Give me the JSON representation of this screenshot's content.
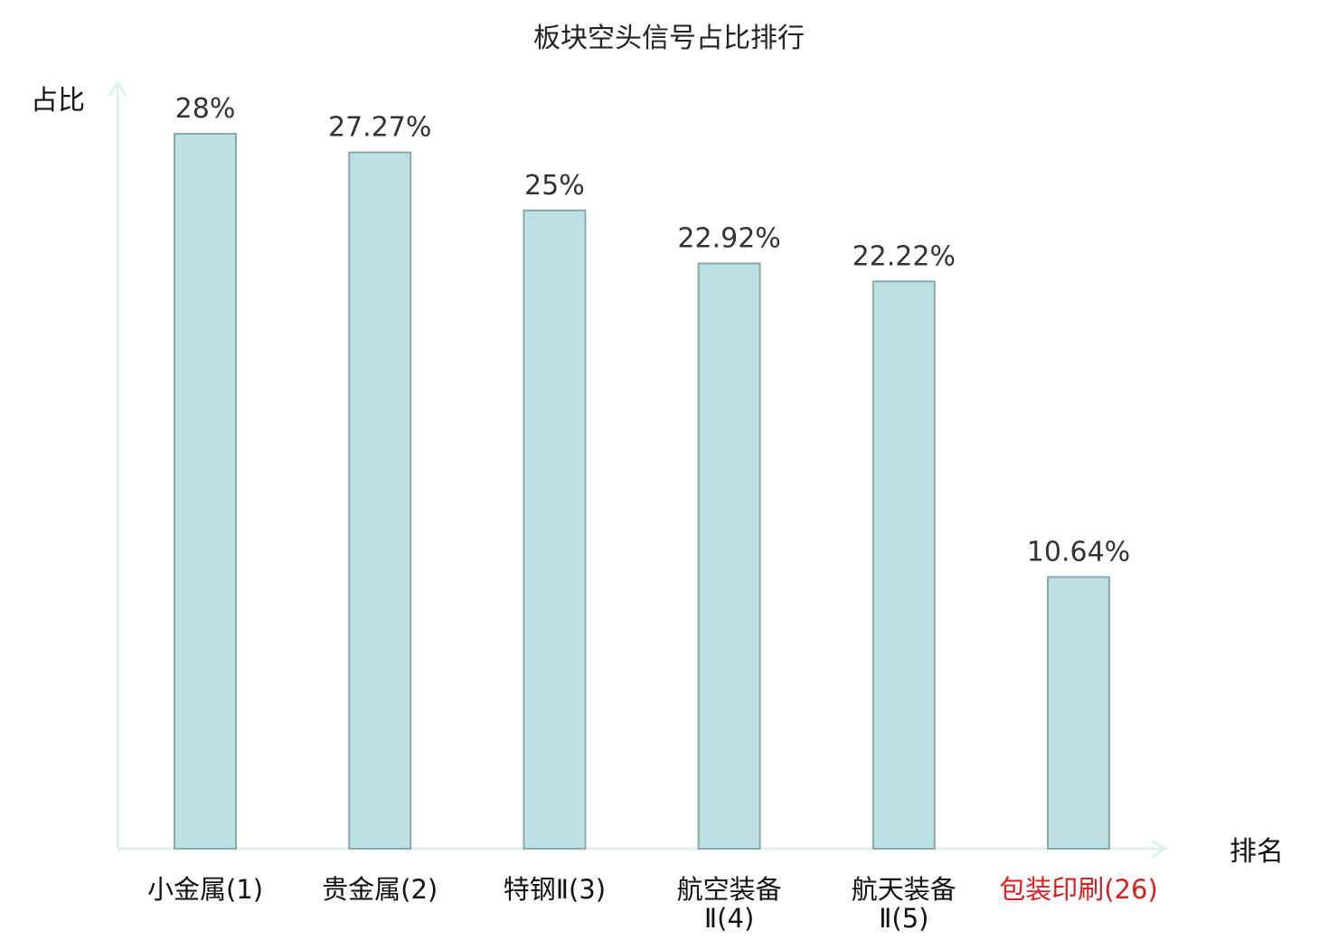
{
  "chart_data": {
    "type": "bar",
    "title": "板块空头信号占比排行",
    "xlabel": "排名",
    "ylabel": "占比",
    "categories": [
      {
        "name_lines": [
          "小金属(1)"
        ],
        "highlight": false
      },
      {
        "name_lines": [
          "贵金属(2)"
        ],
        "highlight": false
      },
      {
        "name_lines": [
          "特钢Ⅱ(3)"
        ],
        "highlight": false
      },
      {
        "name_lines": [
          "航空装备",
          "Ⅱ(4)"
        ],
        "highlight": false
      },
      {
        "name_lines": [
          "航天装备",
          "Ⅱ(5)"
        ],
        "highlight": false
      },
      {
        "name_lines": [
          "包装印刷(26)"
        ],
        "highlight": true
      }
    ],
    "values": [
      28,
      27.27,
      25,
      22.92,
      22.22,
      10.64
    ],
    "value_labels": [
      "28%",
      "27.27%",
      "25%",
      "22.92%",
      "22.22%",
      "10.64%"
    ],
    "ylim": [
      0,
      28
    ],
    "grid": false,
    "colors": {
      "bar_fill": "#bce0e3",
      "bar_stroke": "#8aa9ab",
      "axis": "#dff1ef",
      "highlight_label": "#e01b1b"
    }
  }
}
